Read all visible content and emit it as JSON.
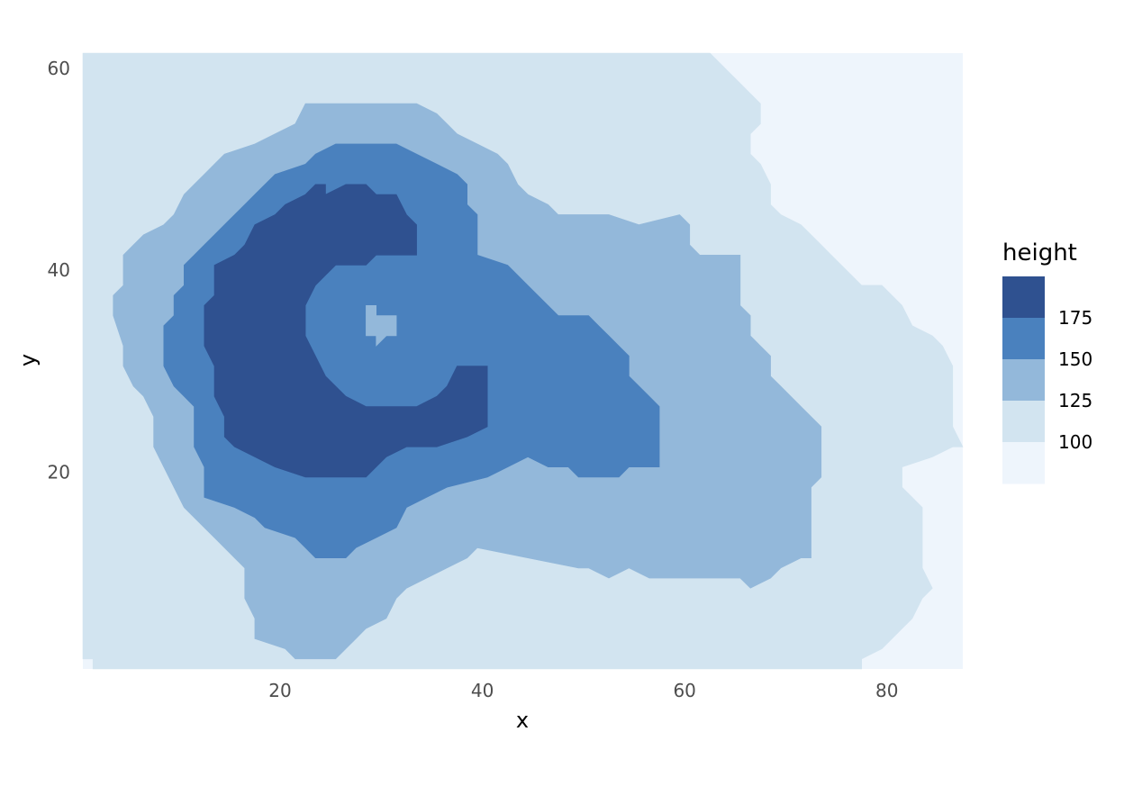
{
  "chart_data": {
    "type": "heatmap",
    "xlabel": "x",
    "ylabel": "y",
    "xlim": [
      0.5,
      87.5
    ],
    "ylim": [
      0.5,
      61.5
    ],
    "x_ticks": [
      20,
      40,
      60,
      80
    ],
    "y_ticks": [
      20,
      40,
      60
    ],
    "grid": false,
    "legend": {
      "title": "height",
      "placement": "right",
      "bins": [
        {
          "range": [
            175,
            200
          ],
          "color": "#2F5190"
        },
        {
          "range": [
            150,
            175
          ],
          "color": "#4A81BE"
        },
        {
          "range": [
            125,
            150
          ],
          "color": "#93B8DA"
        },
        {
          "range": [
            100,
            125
          ],
          "color": "#D2E4F0"
        },
        {
          "range": [
            75,
            100
          ],
          "color": "#EEF5FC"
        }
      ],
      "labels": [
        "175",
        "150",
        "125",
        "100"
      ]
    },
    "level_regions": [
      {
        "level": "100-125",
        "color": "#D2E4F0",
        "outline": [
          [
            0.5,
            61.5
          ],
          [
            62.5,
            61.5
          ],
          [
            63.5,
            60.5
          ],
          [
            64.5,
            59.5
          ],
          [
            65.5,
            58.5
          ],
          [
            66.5,
            57.5
          ],
          [
            67.5,
            56.5
          ],
          [
            67.5,
            54.5
          ],
          [
            66.5,
            53.5
          ],
          [
            66.5,
            51.5
          ],
          [
            67.5,
            50.5
          ],
          [
            68.5,
            48.5
          ],
          [
            68.5,
            46.5
          ],
          [
            69.5,
            45.5
          ],
          [
            71.5,
            44.5
          ],
          [
            72.5,
            43.5
          ],
          [
            73.5,
            42.5
          ],
          [
            74.5,
            41.5
          ],
          [
            75.5,
            40.5
          ],
          [
            76.5,
            39.5
          ],
          [
            77.5,
            38.5
          ],
          [
            79.5,
            38.5
          ],
          [
            80.5,
            37.5
          ],
          [
            81.5,
            36.5
          ],
          [
            82.5,
            34.5
          ],
          [
            84.5,
            33.5
          ],
          [
            85.5,
            32.5
          ],
          [
            86.5,
            30.5
          ],
          [
            86.5,
            24.5
          ],
          [
            87.5,
            22.5
          ],
          [
            86.5,
            22.5
          ],
          [
            84.5,
            21.5
          ],
          [
            81.5,
            20.5
          ],
          [
            81.5,
            18.5
          ],
          [
            82.5,
            17.5
          ],
          [
            83.5,
            16.5
          ],
          [
            83.5,
            12.5
          ],
          [
            83.5,
            10.5
          ],
          [
            84.5,
            8.5
          ],
          [
            83.5,
            7.5
          ],
          [
            82.5,
            5.5
          ],
          [
            81.5,
            4.5
          ],
          [
            80.5,
            3.5
          ],
          [
            79.5,
            2.5
          ],
          [
            77.5,
            1.5
          ],
          [
            77.5,
            0.5
          ],
          [
            1.5,
            0.5
          ],
          [
            1.5,
            1.5
          ],
          [
            0.5,
            1.5
          ],
          [
            0.5,
            10.5
          ],
          [
            0.5,
            61.5
          ]
        ]
      },
      {
        "level": "125-150",
        "color": "#93B8DA",
        "outline": [
          [
            22.5,
            56.5
          ],
          [
            33.5,
            56.5
          ],
          [
            35.5,
            55.5
          ],
          [
            36.5,
            54.5
          ],
          [
            37.5,
            53.5
          ],
          [
            39.5,
            52.5
          ],
          [
            41.5,
            51.5
          ],
          [
            42.5,
            50.5
          ],
          [
            43.5,
            48.5
          ],
          [
            44.5,
            47.5
          ],
          [
            46.5,
            46.5
          ],
          [
            47.5,
            45.5
          ],
          [
            52.5,
            45.5
          ],
          [
            55.5,
            44.5
          ],
          [
            59.5,
            45.5
          ],
          [
            60.5,
            44.5
          ],
          [
            60.5,
            42.5
          ],
          [
            61.5,
            41.5
          ],
          [
            65.5,
            41.5
          ],
          [
            65.5,
            36.5
          ],
          [
            66.5,
            35.5
          ],
          [
            66.5,
            33.5
          ],
          [
            67.5,
            32.5
          ],
          [
            68.5,
            31.5
          ],
          [
            68.5,
            29.5
          ],
          [
            69.5,
            28.5
          ],
          [
            70.5,
            27.5
          ],
          [
            71.5,
            26.5
          ],
          [
            72.5,
            25.5
          ],
          [
            73.5,
            24.5
          ],
          [
            73.5,
            19.5
          ],
          [
            72.5,
            18.5
          ],
          [
            72.5,
            11.5
          ],
          [
            71.5,
            11.5
          ],
          [
            69.5,
            10.5
          ],
          [
            68.5,
            9.5
          ],
          [
            66.5,
            8.5
          ],
          [
            65.5,
            9.5
          ],
          [
            56.5,
            9.5
          ],
          [
            54.5,
            10.5
          ],
          [
            52.5,
            9.5
          ],
          [
            50.5,
            10.5
          ],
          [
            49.5,
            10.5
          ],
          [
            44.5,
            11.5
          ],
          [
            39.5,
            12.5
          ],
          [
            38.5,
            11.5
          ],
          [
            36.5,
            10.5
          ],
          [
            34.5,
            9.5
          ],
          [
            32.5,
            8.5
          ],
          [
            31.5,
            7.5
          ],
          [
            30.5,
            5.5
          ],
          [
            28.5,
            4.5
          ],
          [
            27.5,
            3.5
          ],
          [
            26.5,
            2.5
          ],
          [
            25.5,
            1.5
          ],
          [
            21.5,
            1.5
          ],
          [
            20.5,
            2.5
          ],
          [
            17.5,
            3.5
          ],
          [
            17.5,
            5.5
          ],
          [
            16.5,
            7.5
          ],
          [
            16.5,
            10.5
          ],
          [
            15.5,
            11.5
          ],
          [
            14.5,
            12.5
          ],
          [
            13.5,
            13.5
          ],
          [
            12.5,
            14.5
          ],
          [
            11.5,
            15.5
          ],
          [
            10.5,
            16.5
          ],
          [
            9.5,
            18.5
          ],
          [
            8.5,
            20.5
          ],
          [
            7.5,
            22.5
          ],
          [
            7.5,
            25.5
          ],
          [
            6.5,
            27.5
          ],
          [
            5.5,
            28.5
          ],
          [
            4.5,
            30.5
          ],
          [
            4.5,
            32.5
          ],
          [
            3.5,
            35.5
          ],
          [
            3.5,
            37.5
          ],
          [
            4.5,
            38.5
          ],
          [
            4.5,
            41.5
          ],
          [
            5.5,
            42.5
          ],
          [
            6.5,
            43.5
          ],
          [
            8.5,
            44.5
          ],
          [
            9.5,
            45.5
          ],
          [
            10.5,
            47.5
          ],
          [
            11.5,
            48.5
          ],
          [
            12.5,
            49.5
          ],
          [
            13.5,
            50.5
          ],
          [
            14.5,
            51.5
          ],
          [
            17.5,
            52.5
          ],
          [
            19.5,
            53.5
          ],
          [
            21.5,
            54.5
          ],
          [
            22.5,
            56.5
          ]
        ]
      },
      {
        "level": "150-175",
        "color": "#4A81BE",
        "outline": [
          [
            25.5,
            52.5
          ],
          [
            31.5,
            52.5
          ],
          [
            33.5,
            51.5
          ],
          [
            35.5,
            50.5
          ],
          [
            37.5,
            49.5
          ],
          [
            38.5,
            48.5
          ],
          [
            38.5,
            46.5
          ],
          [
            39.5,
            45.5
          ],
          [
            39.5,
            41.5
          ],
          [
            42.5,
            40.5
          ],
          [
            43.5,
            39.5
          ],
          [
            44.5,
            38.5
          ],
          [
            45.5,
            37.5
          ],
          [
            46.5,
            36.5
          ],
          [
            47.5,
            35.5
          ],
          [
            50.5,
            35.5
          ],
          [
            51.5,
            34.5
          ],
          [
            52.5,
            33.5
          ],
          [
            53.5,
            32.5
          ],
          [
            54.5,
            31.5
          ],
          [
            54.5,
            29.5
          ],
          [
            55.5,
            28.5
          ],
          [
            56.5,
            27.5
          ],
          [
            57.5,
            26.5
          ],
          [
            57.5,
            20.5
          ],
          [
            54.5,
            20.5
          ],
          [
            53.5,
            19.5
          ],
          [
            49.5,
            19.5
          ],
          [
            48.5,
            20.5
          ],
          [
            46.5,
            20.5
          ],
          [
            44.5,
            21.5
          ],
          [
            42.5,
            20.5
          ],
          [
            40.5,
            19.5
          ],
          [
            36.5,
            18.5
          ],
          [
            34.5,
            17.5
          ],
          [
            32.5,
            16.5
          ],
          [
            31.5,
            14.5
          ],
          [
            29.5,
            13.5
          ],
          [
            27.5,
            12.5
          ],
          [
            26.5,
            11.5
          ],
          [
            23.5,
            11.5
          ],
          [
            22.5,
            12.5
          ],
          [
            21.5,
            13.5
          ],
          [
            18.5,
            14.5
          ],
          [
            17.5,
            15.5
          ],
          [
            15.5,
            16.5
          ],
          [
            12.5,
            17.5
          ],
          [
            12.5,
            20.5
          ],
          [
            11.5,
            22.5
          ],
          [
            11.5,
            26.5
          ],
          [
            10.5,
            27.5
          ],
          [
            9.5,
            28.5
          ],
          [
            8.5,
            30.5
          ],
          [
            8.5,
            34.5
          ],
          [
            9.5,
            35.5
          ],
          [
            9.5,
            37.5
          ],
          [
            10.5,
            38.5
          ],
          [
            10.5,
            40.5
          ],
          [
            11.5,
            41.5
          ],
          [
            12.5,
            42.5
          ],
          [
            13.5,
            43.5
          ],
          [
            14.5,
            44.5
          ],
          [
            15.5,
            45.5
          ],
          [
            16.5,
            46.5
          ],
          [
            17.5,
            47.5
          ],
          [
            18.5,
            48.5
          ],
          [
            19.5,
            49.5
          ],
          [
            22.5,
            50.5
          ],
          [
            23.5,
            51.5
          ],
          [
            25.5,
            52.5
          ]
        ]
      },
      {
        "level": "175-200",
        "color": "#2F5190",
        "outline": [
          [
            22.5,
            47.5
          ],
          [
            23.5,
            48.5
          ],
          [
            24.5,
            48.5
          ],
          [
            24.5,
            47.5
          ],
          [
            26.5,
            48.5
          ],
          [
            28.5,
            48.5
          ],
          [
            29.5,
            47.5
          ],
          [
            31.5,
            47.5
          ],
          [
            32.5,
            45.5
          ],
          [
            33.5,
            44.5
          ],
          [
            33.5,
            41.5
          ],
          [
            31.5,
            41.5
          ],
          [
            29.5,
            41.5
          ],
          [
            28.5,
            40.5
          ],
          [
            25.5,
            40.5
          ],
          [
            24.5,
            39.5
          ],
          [
            23.5,
            38.5
          ],
          [
            22.5,
            36.5
          ],
          [
            22.5,
            33.5
          ],
          [
            23.5,
            31.5
          ],
          [
            24.5,
            29.5
          ],
          [
            25.5,
            28.5
          ],
          [
            26.5,
            27.5
          ],
          [
            28.5,
            26.5
          ],
          [
            33.5,
            26.5
          ],
          [
            35.5,
            27.5
          ],
          [
            36.5,
            28.5
          ],
          [
            37.5,
            30.5
          ],
          [
            40.5,
            30.5
          ],
          [
            40.5,
            24.5
          ],
          [
            38.5,
            23.5
          ],
          [
            35.5,
            22.5
          ],
          [
            32.5,
            22.5
          ],
          [
            30.5,
            21.5
          ],
          [
            29.5,
            20.5
          ],
          [
            28.5,
            19.5
          ],
          [
            25.5,
            19.5
          ],
          [
            22.5,
            19.5
          ],
          [
            19.5,
            20.5
          ],
          [
            17.5,
            21.5
          ],
          [
            15.5,
            22.5
          ],
          [
            14.5,
            23.5
          ],
          [
            14.5,
            25.5
          ],
          [
            13.5,
            27.5
          ],
          [
            13.5,
            30.5
          ],
          [
            12.5,
            32.5
          ],
          [
            12.5,
            36.5
          ],
          [
            13.5,
            37.5
          ],
          [
            13.5,
            40.5
          ],
          [
            15.5,
            41.5
          ],
          [
            16.5,
            42.5
          ],
          [
            17.5,
            44.5
          ],
          [
            19.5,
            45.5
          ],
          [
            20.5,
            46.5
          ],
          [
            22.5,
            47.5
          ]
        ]
      },
      {
        "level": "150-175",
        "color": "#4A81BE",
        "outline": [
          [
            28.5,
            36.5
          ],
          [
            29.5,
            36.5
          ],
          [
            29.5,
            35.5
          ],
          [
            31.5,
            35.5
          ],
          [
            31.5,
            33.5
          ],
          [
            30.5,
            33.5
          ],
          [
            29.5,
            32.5
          ],
          [
            28.5,
            33.5
          ],
          [
            28.5,
            36.5
          ]
        ]
      },
      {
        "level": "125-150",
        "color": "#93B8DA",
        "outline": [
          [
            28.5,
            36.5
          ],
          [
            28.5,
            33.5
          ],
          [
            29.5,
            33.5
          ],
          [
            29.5,
            32.5
          ],
          [
            30.5,
            33.5
          ],
          [
            31.5,
            33.5
          ],
          [
            31.5,
            35.5
          ],
          [
            29.5,
            35.5
          ],
          [
            29.5,
            36.5
          ],
          [
            28.5,
            36.5
          ]
        ]
      }
    ]
  }
}
